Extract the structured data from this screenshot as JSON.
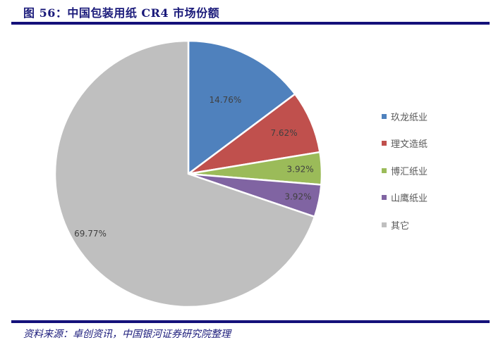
{
  "header": {
    "title": "图 56：中国包装用纸 CR4 市场份额"
  },
  "footer": {
    "source": "资料来源：卓创资讯，中国银河证券研究院整理"
  },
  "chart_data": {
    "type": "pie",
    "title": "中国包装用纸 CR4 市场份额",
    "categories": [
      "玖龙纸业",
      "理文造纸",
      "博汇纸业",
      "山鹰纸业",
      "其它"
    ],
    "values": [
      14.76,
      7.62,
      3.92,
      3.92,
      69.77
    ],
    "labels": [
      "14.76%",
      "7.62%",
      "3.92%",
      "3.92%",
      "69.77%"
    ],
    "colors": [
      "#4f81bd",
      "#c0504d",
      "#9bbb59",
      "#8064a2",
      "#bfbfbf"
    ],
    "start_angle_deg": 0,
    "direction": "clockwise",
    "legend_position": "right"
  },
  "legend": {
    "items": [
      {
        "label": "玖龙纸业",
        "color": "#4f81bd"
      },
      {
        "label": "理文造纸",
        "color": "#c0504d"
      },
      {
        "label": "博汇纸业",
        "color": "#9bbb59"
      },
      {
        "label": "山鹰纸业",
        "color": "#8064a2"
      },
      {
        "label": "其它",
        "color": "#bfbfbf"
      }
    ]
  }
}
